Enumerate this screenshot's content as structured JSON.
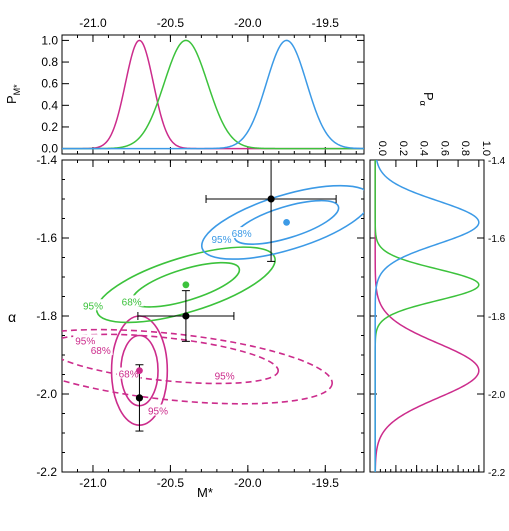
{
  "chart_data": {
    "type": "line",
    "colors": {
      "magenta": "#cc2c8c",
      "green": "#3cc23c",
      "blue": "#3c9ae6",
      "black": "#000000"
    },
    "top_panel": {
      "ylabel": "P",
      "ylabel_sub": "M*",
      "xlim": [
        -21.2,
        -19.25
      ],
      "ylim": [
        -0.05,
        1.05
      ],
      "xticks": [
        -21.0,
        -20.5,
        -20.0,
        -19.5
      ],
      "xtick_labels": [
        "-21.0",
        "-20.5",
        "-20.0",
        "-19.5"
      ],
      "yticks": [
        0.0,
        0.2,
        0.4,
        0.6,
        0.8,
        1.0
      ],
      "ytick_labels": [
        "0.0",
        "0.2",
        "0.4",
        "0.6",
        "0.8",
        "1.0"
      ],
      "series": [
        {
          "color": "magenta",
          "mu": -20.7,
          "sigma": 0.09
        },
        {
          "color": "green",
          "mu": -20.4,
          "sigma": 0.14
        },
        {
          "color": "blue",
          "mu": -19.75,
          "sigma": 0.13
        }
      ]
    },
    "main_panel": {
      "xlabel": "M*",
      "ylabel": "α",
      "xlim": [
        -21.2,
        -19.25
      ],
      "ylim": [
        -2.2,
        -1.4
      ],
      "xticks": [
        -21.0,
        -20.5,
        -20.0,
        -19.5
      ],
      "xtick_labels": [
        "-21.0",
        "-20.5",
        "-20.0",
        "-19.5"
      ],
      "yticks": [
        -2.2,
        -2.0,
        -1.8,
        -1.6,
        -1.4
      ],
      "ytick_labels": [
        "-2.2",
        "-2.0",
        "-1.8",
        "-1.6",
        "-1.4"
      ],
      "contours": [
        {
          "color": "magenta",
          "level": "68%",
          "cx": -20.7,
          "cy": -1.94,
          "rx": 0.12,
          "ry": 0.09,
          "angle": 0,
          "dashed": false
        },
        {
          "color": "magenta",
          "level": "95%",
          "cx": -20.7,
          "cy": -1.94,
          "rx": 0.18,
          "ry": 0.14,
          "angle": 0,
          "dashed": false
        },
        {
          "color": "magenta",
          "level": "68%",
          "cx": -20.55,
          "cy": -1.91,
          "rx": 0.75,
          "ry": 0.055,
          "angle": 6,
          "dashed": true
        },
        {
          "color": "magenta",
          "level": "95%",
          "cx": -20.5,
          "cy": -1.93,
          "rx": 1.05,
          "ry": 0.085,
          "angle": 6,
          "dashed": true
        },
        {
          "color": "green",
          "level": "68%",
          "cx": -20.4,
          "cy": -1.72,
          "rx": 0.36,
          "ry": 0.04,
          "angle": -17,
          "dashed": false
        },
        {
          "color": "green",
          "level": "95%",
          "cx": -20.4,
          "cy": -1.72,
          "rx": 0.6,
          "ry": 0.07,
          "angle": -17,
          "dashed": false
        },
        {
          "color": "blue",
          "level": "68%",
          "cx": -19.75,
          "cy": -1.56,
          "rx": 0.35,
          "ry": 0.04,
          "angle": -17,
          "dashed": false
        },
        {
          "color": "blue",
          "level": "95%",
          "cx": -19.75,
          "cy": -1.56,
          "rx": 0.57,
          "ry": 0.07,
          "angle": -17,
          "dashed": false
        }
      ],
      "contour_labels": [
        {
          "text": "95%",
          "color": "magenta",
          "x": -21.05,
          "y": -1.865
        },
        {
          "text": "68%",
          "color": "magenta",
          "x": -20.95,
          "y": -1.89
        },
        {
          "text": "68%",
          "color": "magenta",
          "x": -20.77,
          "y": -1.95
        },
        {
          "text": "95%",
          "color": "magenta",
          "x": -20.58,
          "y": -2.045
        },
        {
          "text": "95%",
          "color": "magenta",
          "x": -20.15,
          "y": -1.955
        },
        {
          "text": "95%",
          "color": "green",
          "x": -21.0,
          "y": -1.775
        },
        {
          "text": "68%",
          "color": "green",
          "x": -20.75,
          "y": -1.765
        },
        {
          "text": "95%",
          "color": "blue",
          "x": -20.17,
          "y": -1.605
        },
        {
          "text": "68%",
          "color": "blue",
          "x": -20.04,
          "y": -1.59
        }
      ],
      "best_fit_points": [
        {
          "color": "magenta",
          "x": -20.7,
          "y": -1.94
        },
        {
          "color": "green",
          "x": -20.4,
          "y": -1.72
        },
        {
          "color": "blue",
          "x": -19.75,
          "y": -1.56
        }
      ],
      "data_points": [
        {
          "x": -20.7,
          "y": -2.01,
          "x_err": 0.0,
          "y_err": 0.085
        },
        {
          "x": -20.4,
          "y": -1.8,
          "x_err": 0.31,
          "y_err": 0.065
        },
        {
          "x": -19.85,
          "y": -1.5,
          "x_err": 0.42,
          "y_err": 0.16
        }
      ]
    },
    "right_panel": {
      "ylabel": "P",
      "ylabel_sub": "α",
      "xlim": [
        -0.05,
        1.05
      ],
      "ylim": [
        -2.2,
        -1.4
      ],
      "xticks": [
        0.0,
        0.2,
        0.4,
        0.6,
        0.8,
        1.0
      ],
      "xtick_labels": [
        "0.0",
        "0.2",
        "0.4",
        "0.6",
        "0.8",
        "1.0"
      ],
      "yticks": [
        -2.2,
        -2.0,
        -1.8,
        -1.6,
        -1.4
      ],
      "ytick_labels": [
        "-2.2",
        "-2.0",
        "-1.8",
        "-1.6",
        "-1.4"
      ],
      "series": [
        {
          "color": "magenta",
          "mu": -1.94,
          "sigma": 0.07
        },
        {
          "color": "green",
          "mu": -1.72,
          "sigma": 0.04
        },
        {
          "color": "blue",
          "mu": -1.56,
          "sigma": 0.055
        }
      ]
    }
  }
}
